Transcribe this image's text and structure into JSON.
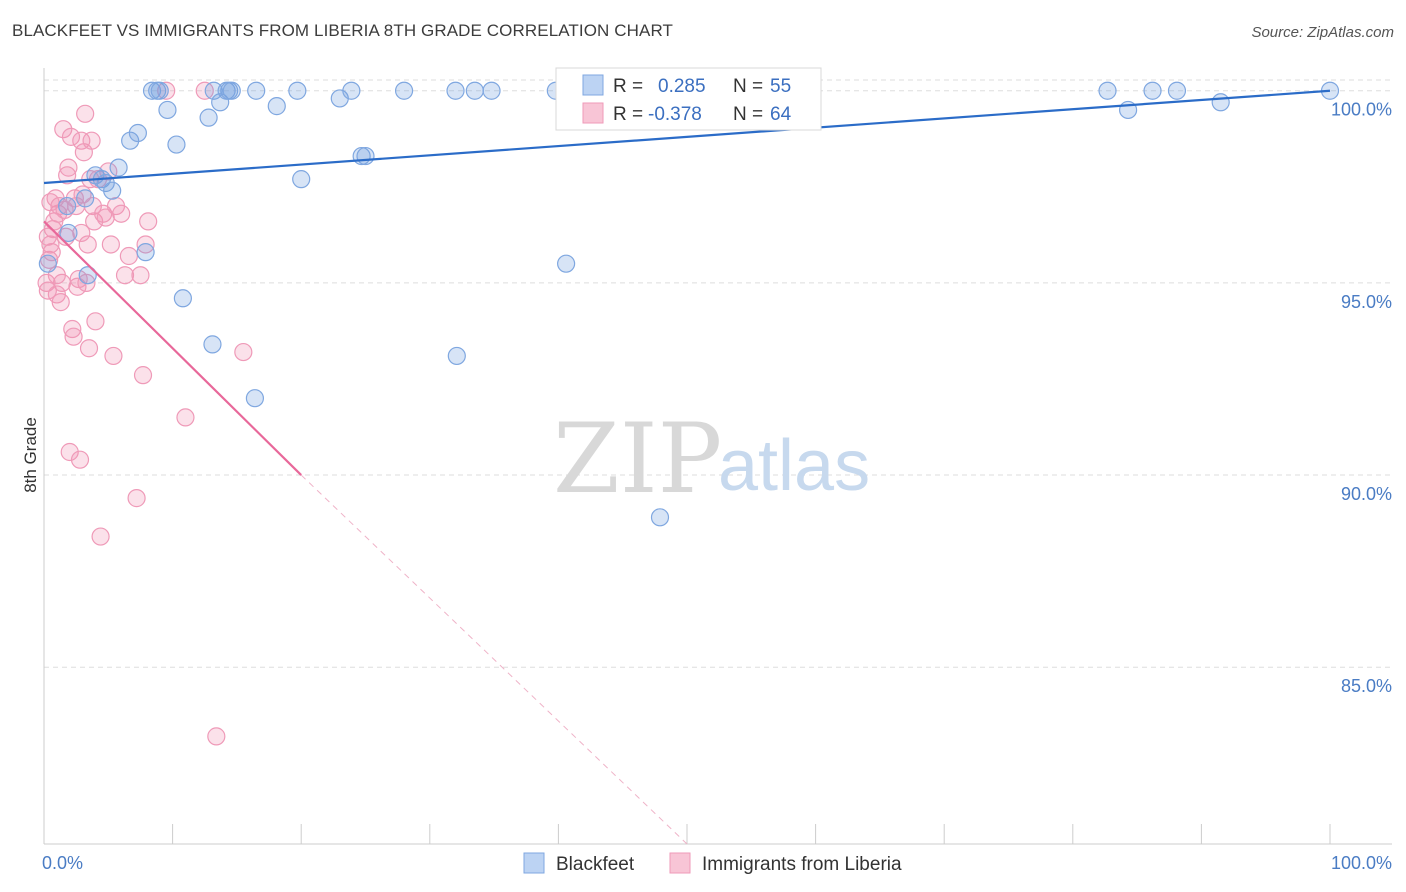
{
  "title": "BLACKFEET VS IMMIGRANTS FROM LIBERIA 8TH GRADE CORRELATION CHART",
  "source": "Source: ZipAtlas.com",
  "watermark": {
    "zip": "ZIP",
    "atlas": "atlas"
  },
  "colors": {
    "blue": "#6f9fe0",
    "blue_line": "#2b6cc8",
    "pink": "#f095b4",
    "pink_line": "#e8689a",
    "grid": "#dddddd"
  },
  "legend": {
    "r_label": "R =",
    "n_label": "N =",
    "blue_r": "0.285",
    "blue_n": "55",
    "pink_r": "-0.378",
    "pink_n": "64"
  },
  "bottom_legend": {
    "blue": "Blackfeet",
    "pink": "Immigrants from Liberia"
  },
  "chart_data": {
    "type": "scatter",
    "title": "BLACKFEET VS IMMIGRANTS FROM LIBERIA 8TH GRADE CORRELATION CHART",
    "xlabel": "",
    "ylabel": "8th Grade",
    "xlim": [
      0,
      100
    ],
    "ylim": [
      80.4,
      100.8
    ],
    "x_tick_labels": [
      "0.0%",
      "100.0%"
    ],
    "y_ticks": [
      100,
      95,
      90,
      85
    ],
    "y_tick_labels": [
      "100.0%",
      "95.0%",
      "90.0%",
      "85.0%"
    ],
    "grid": true,
    "legend_position": "top-center",
    "series": [
      {
        "name": "Blackfeet",
        "color": "#6f9fe0",
        "r": 0.285,
        "n": 55,
        "trend": {
          "x": [
            0,
            100
          ],
          "y": [
            97.6,
            100.0
          ],
          "dashed_extension": false
        },
        "points": [
          [
            0.3,
            95.5
          ],
          [
            1.8,
            97.0
          ],
          [
            1.9,
            96.3
          ],
          [
            3.2,
            97.2
          ],
          [
            3.4,
            95.2
          ],
          [
            4.0,
            97.8
          ],
          [
            4.5,
            97.7
          ],
          [
            4.8,
            97.6
          ],
          [
            5.3,
            97.4
          ],
          [
            5.8,
            98.0
          ],
          [
            6.7,
            98.7
          ],
          [
            7.3,
            98.9
          ],
          [
            7.9,
            95.8
          ],
          [
            8.4,
            100.0
          ],
          [
            8.8,
            100.0
          ],
          [
            9.0,
            100.0
          ],
          [
            9.6,
            99.5
          ],
          [
            10.3,
            98.6
          ],
          [
            10.8,
            94.6
          ],
          [
            12.8,
            99.3
          ],
          [
            13.1,
            93.4
          ],
          [
            13.2,
            100.0
          ],
          [
            13.7,
            99.7
          ],
          [
            14.2,
            100.0
          ],
          [
            14.4,
            100.0
          ],
          [
            14.6,
            100.0
          ],
          [
            16.4,
            92.0
          ],
          [
            16.5,
            100.0
          ],
          [
            18.1,
            99.6
          ],
          [
            19.7,
            100.0
          ],
          [
            20.0,
            97.7
          ],
          [
            23.0,
            99.8
          ],
          [
            23.9,
            100.0
          ],
          [
            24.7,
            98.3
          ],
          [
            25.0,
            98.3
          ],
          [
            28.0,
            100.0
          ],
          [
            32.0,
            100.0
          ],
          [
            32.1,
            93.1
          ],
          [
            33.5,
            100.0
          ],
          [
            34.8,
            100.0
          ],
          [
            39.8,
            100.0
          ],
          [
            40.6,
            95.5
          ],
          [
            46.6,
            100.0
          ],
          [
            47.3,
            100.0
          ],
          [
            47.4,
            100.0
          ],
          [
            47.5,
            100.0
          ],
          [
            47.6,
            100.0
          ],
          [
            47.8,
            100.0
          ],
          [
            47.9,
            88.9
          ],
          [
            82.7,
            100.0
          ],
          [
            84.3,
            99.5
          ],
          [
            86.2,
            100.0
          ],
          [
            88.1,
            100.0
          ],
          [
            91.5,
            99.7
          ],
          [
            100.0,
            100.0
          ]
        ]
      },
      {
        "name": "Immigrants from Liberia",
        "color": "#f095b4",
        "r": -0.378,
        "n": 64,
        "trend": {
          "x": [
            0,
            20
          ],
          "y": [
            96.6,
            90.0
          ],
          "dashed_extension": {
            "x": [
              20,
              50
            ],
            "y": [
              90.0,
              80.4
            ]
          }
        },
        "points": [
          [
            0.2,
            95.0
          ],
          [
            0.3,
            94.8
          ],
          [
            0.4,
            95.6
          ],
          [
            0.5,
            96.0
          ],
          [
            0.6,
            95.8
          ],
          [
            0.7,
            96.4
          ],
          [
            0.8,
            96.6
          ],
          [
            0.9,
            97.2
          ],
          [
            1.0,
            94.7
          ],
          [
            1.1,
            96.8
          ],
          [
            1.2,
            97.0
          ],
          [
            1.3,
            94.5
          ],
          [
            1.4,
            95.0
          ],
          [
            1.5,
            99.0
          ],
          [
            1.6,
            96.9
          ],
          [
            1.8,
            97.8
          ],
          [
            2.0,
            90.6
          ],
          [
            2.1,
            98.8
          ],
          [
            2.2,
            93.8
          ],
          [
            2.3,
            93.6
          ],
          [
            2.4,
            97.2
          ],
          [
            2.5,
            97.0
          ],
          [
            2.6,
            94.9
          ],
          [
            2.7,
            95.1
          ],
          [
            2.8,
            90.4
          ],
          [
            2.9,
            98.7
          ],
          [
            3.0,
            97.3
          ],
          [
            3.1,
            98.4
          ],
          [
            3.2,
            99.4
          ],
          [
            3.3,
            95.0
          ],
          [
            3.4,
            96.0
          ],
          [
            3.5,
            93.3
          ],
          [
            3.6,
            97.7
          ],
          [
            3.7,
            98.7
          ],
          [
            3.8,
            97.0
          ],
          [
            3.9,
            96.6
          ],
          [
            4.0,
            94.0
          ],
          [
            4.2,
            97.7
          ],
          [
            4.4,
            88.4
          ],
          [
            4.6,
            96.8
          ],
          [
            4.8,
            96.7
          ],
          [
            5.0,
            97.9
          ],
          [
            5.2,
            96.0
          ],
          [
            5.4,
            93.1
          ],
          [
            5.6,
            97.0
          ],
          [
            6.0,
            96.8
          ],
          [
            6.3,
            95.2
          ],
          [
            6.6,
            95.7
          ],
          [
            7.2,
            89.4
          ],
          [
            7.5,
            95.2
          ],
          [
            7.7,
            92.6
          ],
          [
            7.9,
            96.0
          ],
          [
            8.1,
            96.6
          ],
          [
            9.5,
            100.0
          ],
          [
            11.0,
            91.5
          ],
          [
            12.5,
            100.0
          ],
          [
            13.4,
            83.2
          ],
          [
            15.5,
            93.2
          ],
          [
            0.5,
            97.1
          ],
          [
            1.0,
            95.2
          ],
          [
            1.7,
            96.2
          ],
          [
            2.9,
            96.3
          ],
          [
            0.3,
            96.2
          ],
          [
            1.9,
            98.0
          ]
        ]
      }
    ]
  }
}
